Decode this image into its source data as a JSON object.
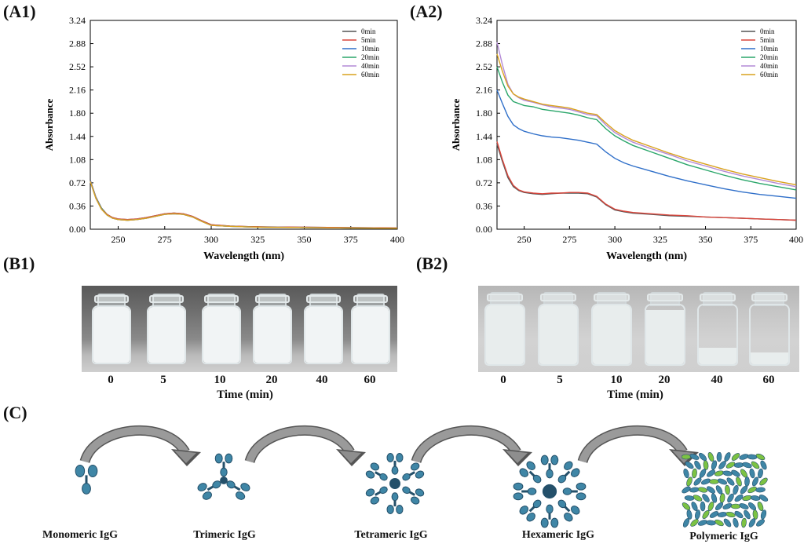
{
  "panels": {
    "a1": "(A1)",
    "a2": "(A2)",
    "b1": "(B1)",
    "b2": "(B2)",
    "c": "(C)"
  },
  "chart_data": [
    {
      "id": "A1",
      "type": "line",
      "xlabel": "Wavelength (nm)",
      "ylabel": "Absorbance",
      "xlim": [
        235,
        400
      ],
      "ylim": [
        0,
        3.24
      ],
      "xticks": [
        250,
        275,
        300,
        325,
        350,
        375,
        400
      ],
      "yticks": [
        0.0,
        0.36,
        0.72,
        1.08,
        1.44,
        1.8,
        2.16,
        2.52,
        2.88,
        3.24
      ],
      "legend_position": "top-right",
      "series": [
        {
          "name": "0min",
          "color": "#555555",
          "x": [
            235,
            238,
            241,
            244,
            247,
            250,
            255,
            260,
            265,
            270,
            275,
            280,
            285,
            290,
            295,
            300,
            310,
            320,
            330,
            350,
            375,
            400
          ],
          "y": [
            0.76,
            0.5,
            0.33,
            0.23,
            0.18,
            0.16,
            0.15,
            0.16,
            0.18,
            0.21,
            0.24,
            0.25,
            0.24,
            0.2,
            0.13,
            0.07,
            0.05,
            0.04,
            0.035,
            0.03,
            0.025,
            0.02
          ]
        },
        {
          "name": "5min",
          "color": "#d9463c",
          "x": [
            235,
            238,
            241,
            244,
            247,
            250,
            255,
            260,
            265,
            270,
            275,
            280,
            285,
            290,
            295,
            300,
            310,
            320,
            330,
            350,
            375,
            400
          ],
          "y": [
            0.75,
            0.49,
            0.32,
            0.23,
            0.18,
            0.16,
            0.15,
            0.16,
            0.18,
            0.21,
            0.24,
            0.25,
            0.24,
            0.2,
            0.13,
            0.07,
            0.05,
            0.04,
            0.035,
            0.03,
            0.025,
            0.02
          ]
        },
        {
          "name": "10min",
          "color": "#2f6fc9",
          "x": [
            235,
            238,
            241,
            244,
            247,
            250,
            255,
            260,
            265,
            270,
            275,
            280,
            285,
            290,
            295,
            300,
            310,
            320,
            330,
            350,
            375,
            400
          ],
          "y": [
            0.75,
            0.49,
            0.32,
            0.22,
            0.17,
            0.15,
            0.14,
            0.15,
            0.17,
            0.2,
            0.23,
            0.24,
            0.23,
            0.19,
            0.12,
            0.06,
            0.045,
            0.035,
            0.03,
            0.025,
            0.02,
            0.015
          ]
        },
        {
          "name": "20min",
          "color": "#2aa66a",
          "x": [
            235,
            238,
            241,
            244,
            247,
            250,
            255,
            260,
            265,
            270,
            275,
            280,
            285,
            290,
            295,
            300,
            310,
            320,
            330,
            350,
            375,
            400
          ],
          "y": [
            0.74,
            0.48,
            0.32,
            0.22,
            0.17,
            0.15,
            0.14,
            0.15,
            0.17,
            0.2,
            0.23,
            0.24,
            0.23,
            0.19,
            0.12,
            0.06,
            0.045,
            0.035,
            0.03,
            0.025,
            0.02,
            0.015
          ]
        },
        {
          "name": "40min",
          "color": "#b48ad6",
          "x": [
            235,
            238,
            241,
            244,
            247,
            250,
            255,
            260,
            265,
            270,
            275,
            280,
            285,
            290,
            295,
            300,
            310,
            320,
            330,
            350,
            375,
            400
          ],
          "y": [
            0.74,
            0.48,
            0.31,
            0.22,
            0.17,
            0.15,
            0.14,
            0.15,
            0.17,
            0.2,
            0.23,
            0.24,
            0.23,
            0.19,
            0.12,
            0.06,
            0.045,
            0.035,
            0.03,
            0.025,
            0.02,
            0.015
          ]
        },
        {
          "name": "60min",
          "color": "#d9a21e",
          "x": [
            235,
            238,
            241,
            244,
            247,
            250,
            255,
            260,
            265,
            270,
            275,
            280,
            285,
            290,
            295,
            300,
            310,
            320,
            330,
            350,
            375,
            400
          ],
          "y": [
            0.74,
            0.48,
            0.31,
            0.22,
            0.17,
            0.15,
            0.14,
            0.15,
            0.17,
            0.2,
            0.23,
            0.24,
            0.23,
            0.19,
            0.12,
            0.06,
            0.045,
            0.035,
            0.03,
            0.025,
            0.02,
            0.015
          ]
        }
      ]
    },
    {
      "id": "A2",
      "type": "line",
      "xlabel": "Wavelength (nm)",
      "ylabel": "Absorbance",
      "xlim": [
        235,
        400
      ],
      "ylim": [
        0,
        3.24
      ],
      "xticks": [
        250,
        275,
        300,
        325,
        350,
        375,
        400
      ],
      "yticks": [
        0.0,
        0.36,
        0.72,
        1.08,
        1.44,
        1.8,
        2.16,
        2.52,
        2.88,
        3.24
      ],
      "legend_position": "top-right",
      "series": [
        {
          "name": "0min",
          "color": "#555555",
          "x": [
            235,
            238,
            241,
            244,
            247,
            250,
            255,
            260,
            265,
            270,
            275,
            280,
            285,
            290,
            295,
            300,
            305,
            310,
            320,
            330,
            340,
            350,
            360,
            370,
            380,
            390,
            400
          ],
          "y": [
            1.32,
            1.05,
            0.8,
            0.66,
            0.6,
            0.57,
            0.55,
            0.54,
            0.55,
            0.56,
            0.56,
            0.56,
            0.55,
            0.5,
            0.38,
            0.3,
            0.27,
            0.25,
            0.23,
            0.21,
            0.2,
            0.19,
            0.18,
            0.17,
            0.16,
            0.15,
            0.14
          ]
        },
        {
          "name": "5min",
          "color": "#d9463c",
          "x": [
            235,
            238,
            241,
            244,
            247,
            250,
            255,
            260,
            265,
            270,
            275,
            280,
            285,
            290,
            295,
            300,
            305,
            310,
            320,
            330,
            340,
            350,
            360,
            370,
            380,
            390,
            400
          ],
          "y": [
            1.36,
            1.08,
            0.83,
            0.68,
            0.61,
            0.58,
            0.56,
            0.55,
            0.56,
            0.56,
            0.57,
            0.57,
            0.56,
            0.51,
            0.39,
            0.31,
            0.28,
            0.26,
            0.24,
            0.22,
            0.21,
            0.19,
            0.18,
            0.17,
            0.16,
            0.15,
            0.14
          ]
        },
        {
          "name": "10min",
          "color": "#2f6fc9",
          "x": [
            235,
            238,
            241,
            244,
            247,
            250,
            255,
            260,
            265,
            270,
            275,
            280,
            285,
            290,
            295,
            300,
            305,
            310,
            320,
            330,
            340,
            350,
            360,
            370,
            380,
            390,
            400
          ],
          "y": [
            2.16,
            1.95,
            1.75,
            1.62,
            1.56,
            1.52,
            1.48,
            1.45,
            1.43,
            1.42,
            1.4,
            1.38,
            1.35,
            1.32,
            1.2,
            1.1,
            1.03,
            0.98,
            0.9,
            0.82,
            0.75,
            0.69,
            0.63,
            0.58,
            0.54,
            0.51,
            0.48
          ]
        },
        {
          "name": "20min",
          "color": "#2aa66a",
          "x": [
            235,
            238,
            241,
            244,
            247,
            250,
            255,
            260,
            265,
            270,
            275,
            280,
            285,
            290,
            295,
            300,
            305,
            310,
            320,
            330,
            340,
            350,
            360,
            370,
            380,
            390,
            400
          ],
          "y": [
            2.52,
            2.28,
            2.08,
            1.98,
            1.95,
            1.92,
            1.9,
            1.86,
            1.84,
            1.82,
            1.8,
            1.77,
            1.73,
            1.7,
            1.56,
            1.45,
            1.37,
            1.3,
            1.2,
            1.1,
            1.0,
            0.92,
            0.84,
            0.77,
            0.71,
            0.66,
            0.61
          ]
        },
        {
          "name": "40min",
          "color": "#b48ad6",
          "x": [
            235,
            238,
            241,
            244,
            247,
            250,
            255,
            260,
            265,
            270,
            275,
            280,
            285,
            290,
            295,
            300,
            305,
            310,
            320,
            330,
            340,
            350,
            360,
            370,
            380,
            390,
            400
          ],
          "y": [
            2.9,
            2.55,
            2.25,
            2.1,
            2.04,
            2.0,
            1.97,
            1.93,
            1.9,
            1.88,
            1.86,
            1.82,
            1.78,
            1.76,
            1.62,
            1.5,
            1.42,
            1.35,
            1.25,
            1.16,
            1.06,
            0.98,
            0.9,
            0.83,
            0.77,
            0.71,
            0.66
          ]
        },
        {
          "name": "60min",
          "color": "#d9a21e",
          "x": [
            235,
            238,
            241,
            244,
            247,
            250,
            255,
            260,
            265,
            270,
            275,
            280,
            285,
            290,
            295,
            300,
            305,
            310,
            320,
            330,
            340,
            350,
            360,
            370,
            380,
            390,
            400
          ],
          "y": [
            2.72,
            2.45,
            2.22,
            2.1,
            2.05,
            2.02,
            1.98,
            1.94,
            1.92,
            1.9,
            1.88,
            1.84,
            1.8,
            1.78,
            1.65,
            1.53,
            1.45,
            1.38,
            1.28,
            1.18,
            1.09,
            1.01,
            0.93,
            0.86,
            0.8,
            0.74,
            0.69
          ]
        }
      ]
    }
  ],
  "photo_b1": {
    "ticks": [
      "0",
      "5",
      "10",
      "20",
      "40",
      "60"
    ],
    "xlabel": "Time (min)"
  },
  "photo_b2": {
    "ticks": [
      "0",
      "5",
      "10",
      "20",
      "40",
      "60"
    ],
    "xlabel": "Time (min)"
  },
  "vial_colors": {
    "b1_liquid": "#f1f4f5",
    "b2_liquid": "#e8eded"
  },
  "stages": [
    {
      "label": "Monomeric IgG",
      "icon": "monomer-igg"
    },
    {
      "label": "Trimeric IgG",
      "icon": "trimer-igg"
    },
    {
      "label": "Tetrameric IgG",
      "icon": "tetramer-igg"
    },
    {
      "label": "Hexameric IgG",
      "icon": "hexamer-igg"
    },
    {
      "label": "Polymeric IgG",
      "icon": "polymer-igg"
    }
  ],
  "colors": {
    "molecule": "#3f86a6",
    "molecule_dark": "#24506a",
    "polymer_green": "#7cc243",
    "arrow": "#8a8a8a"
  }
}
